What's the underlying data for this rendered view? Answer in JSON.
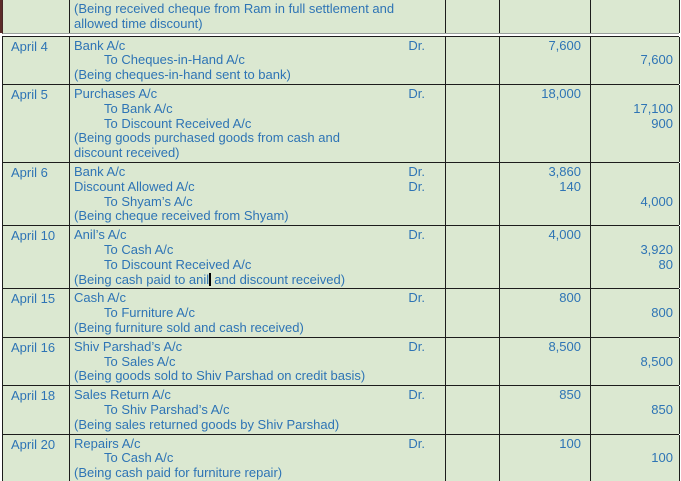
{
  "journal": {
    "dr_label": "Dr.",
    "colors": {
      "cell_background": "#dbe8d1",
      "text_blue": "#2e74b5",
      "grid_border": "#1c1c1c",
      "split_boundary_gray": "#9aa09e"
    },
    "columns": [
      "date",
      "particulars",
      "ledger_folio",
      "debit",
      "credit"
    ],
    "carryover_entry": {
      "date": "",
      "lines": [
        {
          "kind": "narration",
          "text": "(Being received cheque from Ram in full settlement and"
        },
        {
          "kind": "narration",
          "text": "allowed time discount)"
        }
      ]
    },
    "entries": [
      {
        "date": "April 4",
        "lines": [
          {
            "kind": "account",
            "text": "Bank A/c",
            "dr": true,
            "debit": "7,600"
          },
          {
            "kind": "to",
            "text": "To Cheques-in-Hand A/c",
            "credit": "7,600"
          },
          {
            "kind": "narration",
            "text": "(Being cheques-in-hand sent to bank)"
          }
        ]
      },
      {
        "date": "April 5",
        "lines": [
          {
            "kind": "account",
            "text": "Purchases A/c",
            "dr": true,
            "debit": "18,000"
          },
          {
            "kind": "to",
            "text": "To Bank A/c",
            "credit": "17,100"
          },
          {
            "kind": "to",
            "text": "To Discount Received A/c",
            "credit": "900"
          },
          {
            "kind": "narration",
            "text": "(Being goods purchased goods from cash and"
          },
          {
            "kind": "narration",
            "text": "discount received)"
          }
        ]
      },
      {
        "date": "April 6",
        "lines": [
          {
            "kind": "account",
            "text": "Bank A/c",
            "dr": true,
            "debit": "3,860"
          },
          {
            "kind": "account",
            "text": "Discount Allowed A/c",
            "dr": true,
            "debit": "140"
          },
          {
            "kind": "to",
            "text": "To Shyam’s A/c",
            "credit": "4,000"
          },
          {
            "kind": "narration",
            "text": "(Being cheque received from Shyam)"
          }
        ]
      },
      {
        "date": "April 10",
        "lines": [
          {
            "kind": "account",
            "text": "Anil’s A/c",
            "dr": true,
            "debit": "4,000"
          },
          {
            "kind": "to",
            "text": "To Cash A/c",
            "credit": "3,920"
          },
          {
            "kind": "to",
            "text": "To Discount Received A/c",
            "credit": "80"
          },
          {
            "kind": "narration",
            "text": "(Being cash paid to anil and discount received)",
            "cursor_pre": "(Being cash paid to anil",
            "cursor_post": " and discount received)"
          }
        ]
      },
      {
        "date": "April 15",
        "lines": [
          {
            "kind": "account",
            "text": "Cash A/c",
            "dr": true,
            "debit": "800"
          },
          {
            "kind": "to",
            "text": "To Furniture A/c",
            "credit": "800"
          },
          {
            "kind": "narration",
            "text": "(Being furniture sold and cash received)"
          }
        ]
      },
      {
        "date": "April 16",
        "lines": [
          {
            "kind": "account",
            "text": "Shiv Parshad’s A/c",
            "dr": true,
            "debit": "8,500"
          },
          {
            "kind": "to",
            "text": "To Sales A/c",
            "credit": "8,500"
          },
          {
            "kind": "narration",
            "text": "(Being goods sold to Shiv Parshad on credit basis)"
          }
        ]
      },
      {
        "date": "April 18",
        "lines": [
          {
            "kind": "account",
            "text": "Sales Return A/c",
            "dr": true,
            "debit": "850"
          },
          {
            "kind": "to",
            "text": "To Shiv Parshad’s A/c",
            "credit": "850"
          },
          {
            "kind": "narration",
            "text": "(Being sales returned goods by Shiv Parshad)"
          }
        ]
      },
      {
        "date": "April 20",
        "lines": [
          {
            "kind": "account",
            "text": "Repairs A/c",
            "dr": true,
            "debit": "100"
          },
          {
            "kind": "to",
            "text": "To Cash A/c",
            "credit": "100"
          },
          {
            "kind": "narration",
            "text": "(Being cash paid for furniture repair)"
          }
        ]
      }
    ]
  }
}
